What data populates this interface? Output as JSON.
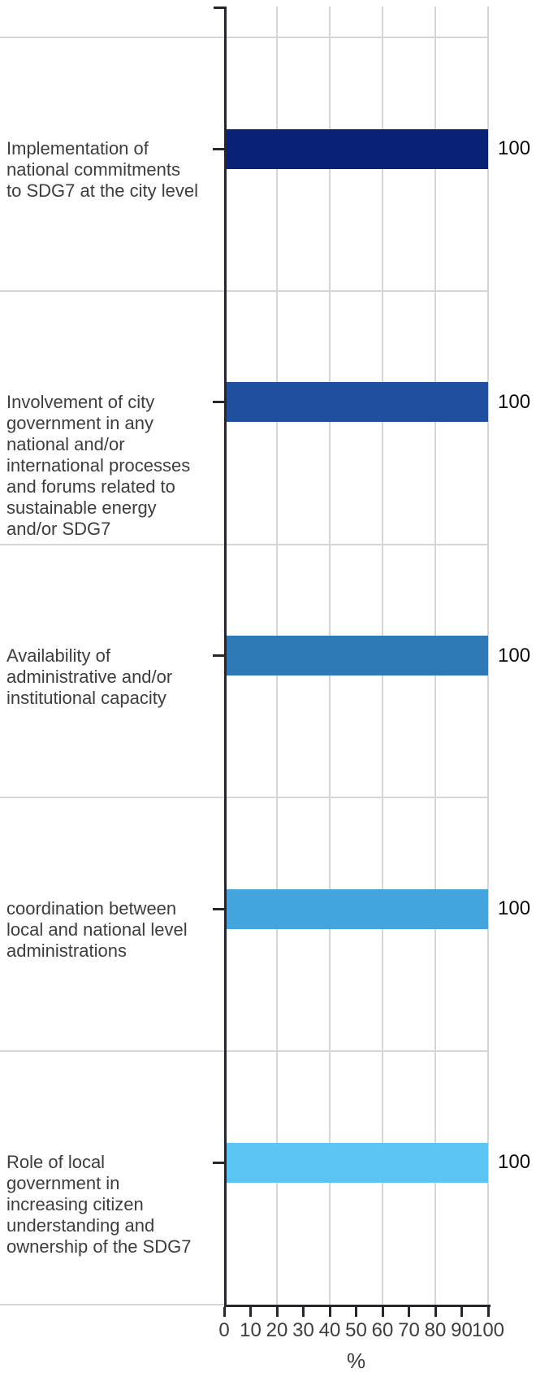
{
  "chart_data": {
    "type": "bar",
    "orientation": "horizontal",
    "title": "",
    "xlabel": "%",
    "ylabel": "",
    "xlim": [
      0,
      100
    ],
    "x_ticks": [
      0,
      10,
      20,
      30,
      40,
      50,
      60,
      70,
      80,
      90,
      100
    ],
    "gridlines_at": [
      20,
      40,
      60,
      80,
      100
    ],
    "grid": true,
    "legend": false,
    "categories": [
      "Implementation of national commitments to SDG7 at the city level",
      "Involvement of city government in any national and/or international processes and forums related to sustainable energy and/or SDG7",
      "Availability of administrative and/or institutional capacity",
      "coordination between local and national level administrations",
      "Role of local government in increasing citizen understanding and ownership of the SDG7"
    ],
    "category_lines": [
      [
        "Implementation of",
        "national commitments",
        "to SDG7 at the city level"
      ],
      [
        "Involvement of city",
        "government in any",
        "national and/or",
        "international processes",
        "and forums related to",
        "sustainable energy",
        "and/or SDG7"
      ],
      [
        "Availability of",
        "administrative and/or",
        "institutional capacity"
      ],
      [
        "coordination between",
        "local and national level",
        "administrations"
      ],
      [
        "Role of local",
        "government in",
        "increasing citizen",
        "understanding and",
        "ownership of the SDG7"
      ]
    ],
    "values": [
      100,
      100,
      100,
      100,
      100
    ],
    "value_labels": [
      "100",
      "100",
      "100",
      "100",
      "100"
    ],
    "bar_colors": [
      "#0a2178",
      "#1f4f9e",
      "#2e78b5",
      "#44a5de",
      "#5ac4f2"
    ]
  },
  "colors": {
    "background": "#ffffff",
    "gridline": "#d6d6d6",
    "axis": "#26262e",
    "category_text": "#3d3d3d",
    "tick_text": "#3d3d3d",
    "value_text": "#0a0a0a"
  }
}
